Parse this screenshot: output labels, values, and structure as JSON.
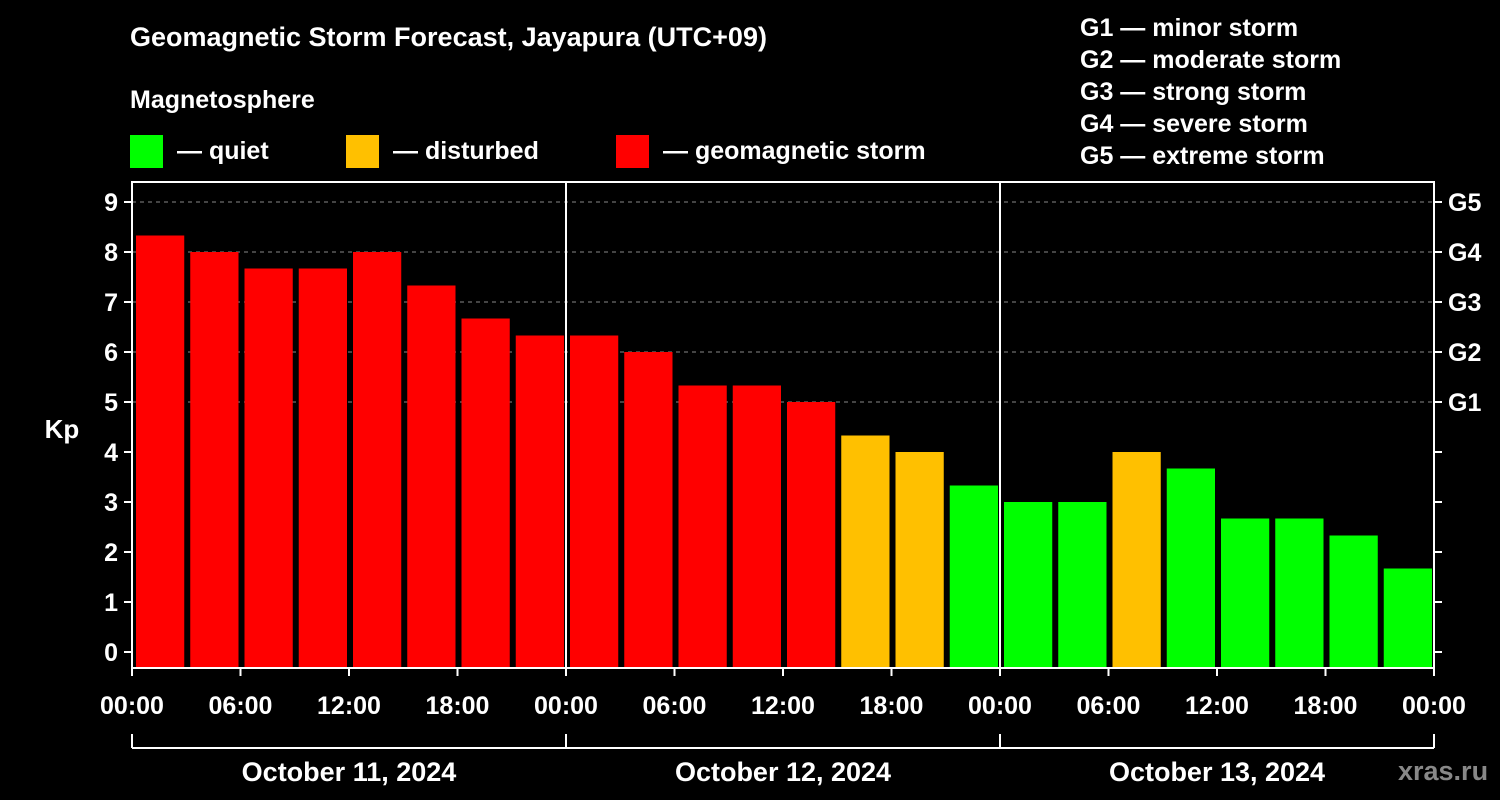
{
  "header": {
    "title": "Geomagnetic Storm Forecast, Jayapura (UTC+09)",
    "subtitle": "Magnetosphere"
  },
  "legend": [
    {
      "label": "— quiet",
      "color": "#00ff00"
    },
    {
      "label": "— disturbed",
      "color": "#ffc000"
    },
    {
      "label": "— geomagnetic storm",
      "color": "#ff0000"
    }
  ],
  "storm_levels": [
    "G1 — minor storm",
    "G2 — moderate storm",
    "G3 — strong storm",
    "G4 — severe storm",
    "G5 — extreme storm"
  ],
  "watermark": "xras.ru",
  "chart_data": {
    "type": "bar",
    "title": "Geomagnetic Storm Forecast, Jayapura (UTC+09)",
    "ylabel": "Kp",
    "ylim": [
      0,
      9
    ],
    "yticks": [
      0,
      1,
      2,
      3,
      4,
      5,
      6,
      7,
      8,
      9
    ],
    "right_axis_labels": [
      {
        "kp": 5,
        "label": "G1"
      },
      {
        "kp": 6,
        "label": "G2"
      },
      {
        "kp": 7,
        "label": "G3"
      },
      {
        "kp": 8,
        "label": "G4"
      },
      {
        "kp": 9,
        "label": "G5"
      }
    ],
    "grid": "dashed horizontal at Kp 5-9",
    "xtick_labels": [
      "00:00",
      "06:00",
      "12:00",
      "18:00",
      "00:00",
      "06:00",
      "12:00",
      "18:00",
      "00:00",
      "06:00",
      "12:00",
      "18:00",
      "00:00"
    ],
    "days": [
      "October 11, 2024",
      "October 12, 2024",
      "October 13, 2024"
    ],
    "interval_hours": 3,
    "values": [
      8.33,
      8.0,
      7.67,
      7.67,
      8.0,
      7.33,
      6.67,
      6.33,
      6.33,
      6.0,
      5.33,
      5.33,
      5.0,
      4.33,
      4.0,
      3.33,
      3.0,
      3.0,
      4.0,
      3.67,
      2.67,
      2.67,
      2.33,
      1.67
    ],
    "status": [
      "storm",
      "storm",
      "storm",
      "storm",
      "storm",
      "storm",
      "storm",
      "storm",
      "storm",
      "storm",
      "storm",
      "storm",
      "storm",
      "disturbed",
      "disturbed",
      "quiet",
      "quiet",
      "quiet",
      "disturbed",
      "quiet",
      "quiet",
      "quiet",
      "quiet",
      "quiet"
    ],
    "status_colors": {
      "quiet": "#00ff00",
      "disturbed": "#ffc000",
      "storm": "#ff0000"
    }
  }
}
